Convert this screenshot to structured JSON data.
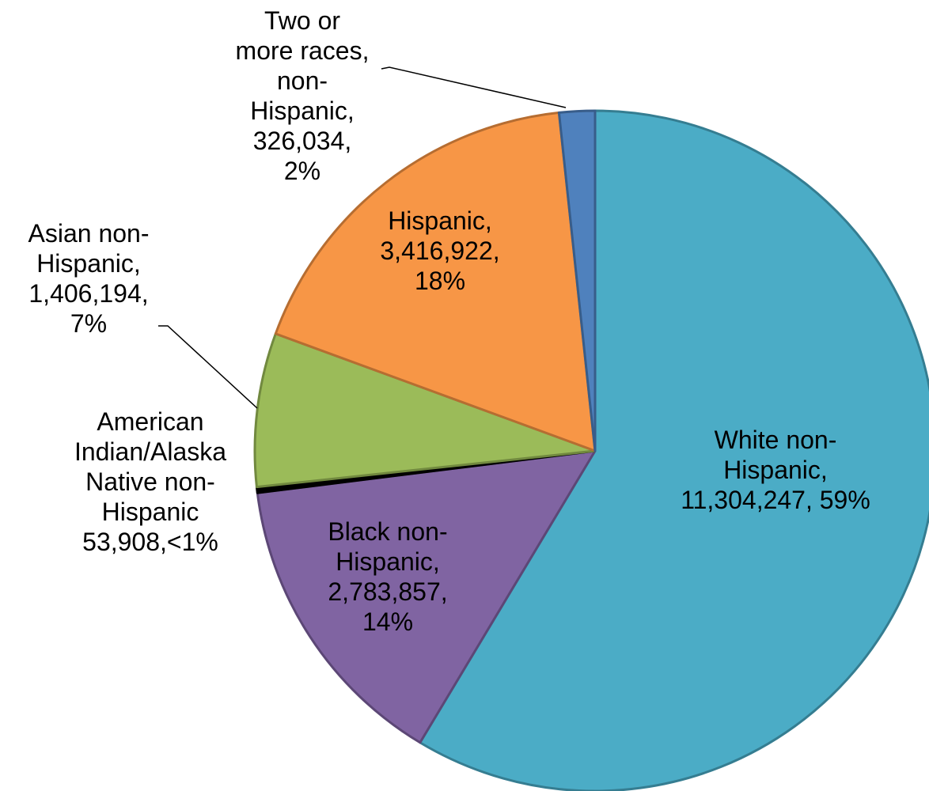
{
  "chart_data": {
    "type": "pie",
    "title": "",
    "categories": [
      "White non-Hispanic",
      "Black non-Hispanic",
      "American Indian/Alaska Native non-Hispanic",
      "Asian non-Hispanic",
      "Hispanic",
      "Two or more races, non-Hispanic"
    ],
    "values": [
      11304247,
      2783857,
      53908,
      1406194,
      3416922,
      326034
    ],
    "percent_labels": [
      "59%",
      "14%",
      "<1%",
      "7%",
      "18%",
      "2%"
    ],
    "colors": [
      "#4BACC6",
      "#8064A2",
      "#000000",
      "#9BBB59",
      "#F79646",
      "#4F81BD"
    ],
    "border_colors": [
      "#357D91",
      "#5C4776",
      "#000000",
      "#71893F",
      "#B66D31",
      "#385D8A"
    ],
    "start_angle_deg": 0,
    "direction": "clockwise",
    "legend": "none",
    "data_labels": [
      [
        "White non-",
        "Hispanic,",
        "11,304,247, 59%"
      ],
      [
        "Black non-",
        "Hispanic,",
        "2,783,857,",
        "14%"
      ],
      [
        "American",
        "Indian/Alaska",
        "Native non-",
        "Hispanic",
        "53,908,<1%"
      ],
      [
        "Asian non-",
        "Hispanic,",
        "1,406,194,",
        "7%"
      ],
      [
        "Hispanic,",
        "3,416,922,",
        "18%"
      ],
      [
        "Two or",
        "more races,",
        "non-",
        "Hispanic,",
        "326,034,",
        "2%"
      ]
    ]
  }
}
